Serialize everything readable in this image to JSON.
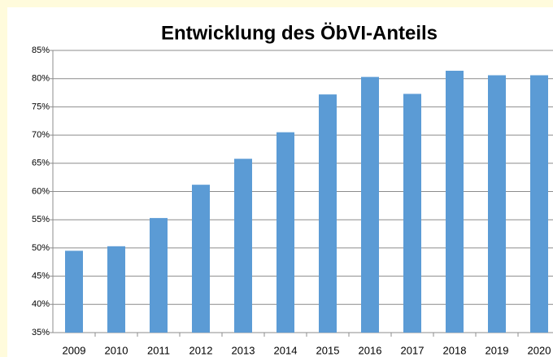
{
  "chart_data": {
    "type": "bar",
    "title": "Entwicklung des ÖbVI-Anteils",
    "categories": [
      "2009",
      "2010",
      "2011",
      "2012",
      "2013",
      "2014",
      "2015",
      "2016",
      "2017",
      "2018",
      "2019",
      "2020"
    ],
    "values": [
      49.5,
      50.3,
      55.3,
      61.2,
      65.8,
      70.5,
      77.2,
      80.3,
      77.3,
      81.4,
      80.6,
      80.6
    ],
    "color": "#5b9bd5",
    "ylim": [
      35,
      85
    ],
    "yticks": [
      {
        "value": 35,
        "label": "35%"
      },
      {
        "value": 40,
        "label": "40%"
      },
      {
        "value": 45,
        "label": "45%"
      },
      {
        "value": 50,
        "label": "50%"
      },
      {
        "value": 55,
        "label": "55%"
      },
      {
        "value": 60,
        "label": "60%"
      },
      {
        "value": 65,
        "label": "65%"
      },
      {
        "value": 70,
        "label": "70%"
      },
      {
        "value": 75,
        "label": "75%"
      },
      {
        "value": 80,
        "label": "80%"
      },
      {
        "value": 85,
        "label": "85%"
      }
    ],
    "grid": true
  }
}
